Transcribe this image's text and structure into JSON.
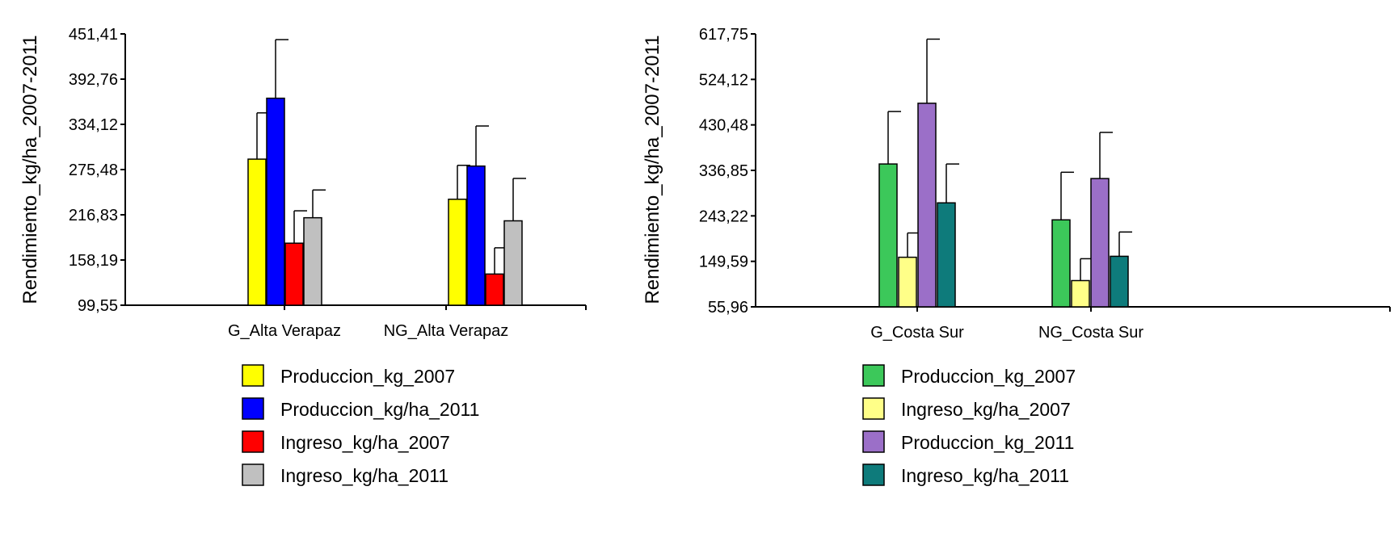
{
  "chart_data": [
    {
      "type": "bar",
      "ylabel": "Rendimiento_kg/ha_2007-2011",
      "yticks": [
        "99,55",
        "158,19",
        "216,83",
        "275,48",
        "334,12",
        "392,76",
        "451,41"
      ],
      "ylim": [
        99.55,
        451.41
      ],
      "categories": [
        "G_Alta Verapaz",
        "NG_Alta Verapaz"
      ],
      "series": [
        {
          "name": "Produccion_kg_2007",
          "color": "#ffff00",
          "values": [
            289,
            237
          ],
          "errors": [
            60,
            44
          ]
        },
        {
          "name": "Produccion_kg/ha_2011",
          "color": "#0000ff",
          "values": [
            368,
            280
          ],
          "errors": [
            76,
            52
          ]
        },
        {
          "name": "Ingreso_kg/ha_2007",
          "color": "#ff0000",
          "values": [
            180,
            140
          ],
          "errors": [
            42,
            34
          ]
        },
        {
          "name": "Ingreso_kg/ha_2011",
          "color": "#c0c0c0",
          "values": [
            213,
            209
          ],
          "errors": [
            36,
            55
          ]
        }
      ],
      "legend_position": "bottom"
    },
    {
      "type": "bar",
      "ylabel": "Rendimiento_kg/ha_2007-2011",
      "yticks": [
        "55,96",
        "149,59",
        "243,22",
        "336,85",
        "430,48",
        "524,12",
        "617,75"
      ],
      "ylim": [
        55.96,
        617.75
      ],
      "categories": [
        "G_Costa Sur",
        "NG_Costa Sur"
      ],
      "series": [
        {
          "name": "Produccion_kg_2007",
          "color": "#3cc85a",
          "values": [
            350,
            235
          ],
          "errors": [
            108,
            98
          ]
        },
        {
          "name": "Ingreso_kg/ha_2007",
          "color": "#ffff88",
          "values": [
            158,
            110
          ],
          "errors": [
            50,
            45
          ]
        },
        {
          "name": "Produccion_kg_2011",
          "color": "#9b6fc8",
          "values": [
            475,
            320
          ],
          "errors": [
            132,
            95
          ]
        },
        {
          "name": "Ingreso_kg/ha_2011",
          "color": "#0e7b7b",
          "values": [
            270,
            160
          ],
          "errors": [
            80,
            50
          ]
        }
      ],
      "legend_position": "bottom"
    }
  ]
}
